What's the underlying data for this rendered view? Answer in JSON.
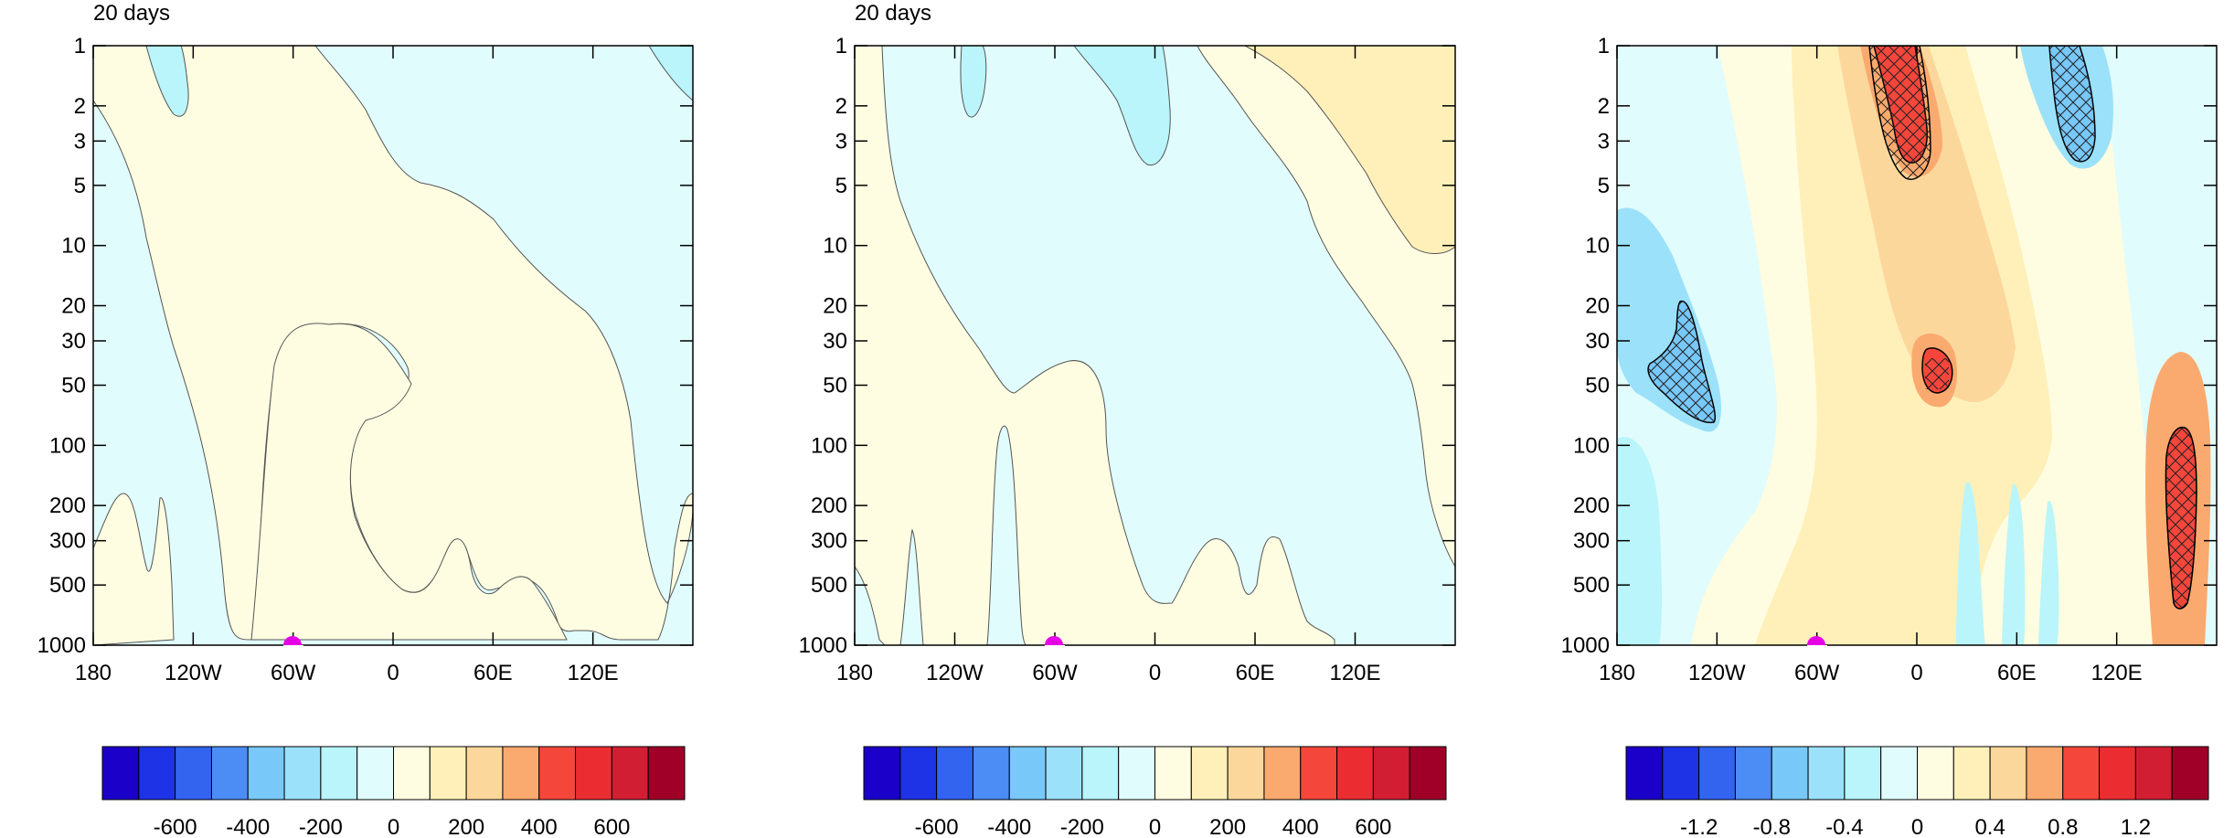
{
  "chart_data": [
    {
      "type": "heatmap",
      "title": "20 days",
      "x_ticks": [
        "180",
        "120W",
        "60W",
        "0",
        "60E",
        "120E"
      ],
      "y_ticks": [
        "1",
        "2",
        "3",
        "5",
        "10",
        "20",
        "30",
        "50",
        "100",
        "200",
        "300",
        "500",
        "1000"
      ],
      "y_scale": "log",
      "y_reversed": true,
      "xlim": [
        -180,
        180
      ],
      "ylim": [
        1,
        1000
      ],
      "marker": {
        "lon": -60,
        "lev": 1000,
        "color": "#e600e6"
      },
      "colorbar": {
        "labels": [
          "-600",
          "-400",
          "-200",
          "0",
          "200",
          "400",
          "600"
        ],
        "colors": [
          "#1a00c8",
          "#1e32e6",
          "#3264f0",
          "#4b8cf5",
          "#78c8fa",
          "#9be1fa",
          "#b9f5fa",
          "#e1fcfc",
          "#fffde1",
          "#fff0b9",
          "#fcd79b",
          "#faaa6e",
          "#f5463c",
          "#eb2d32",
          "#d21e32",
          "#a00028"
        ]
      },
      "levels_shown": [
        {
          "level": "-100 to 0",
          "color": "#e1fcfc",
          "description": "light cyan region"
        },
        {
          "level": "0 to 100",
          "color": "#fffde1",
          "description": "light yellow region"
        },
        {
          "level": "-200 to -100",
          "color": "#b9f5fa",
          "description": "small cyan patches near top"
        }
      ]
    },
    {
      "type": "heatmap",
      "title": "20 days",
      "x_ticks": [
        "180",
        "120W",
        "60W",
        "0",
        "60E",
        "120E"
      ],
      "y_ticks": [
        "1",
        "2",
        "3",
        "5",
        "10",
        "20",
        "30",
        "50",
        "100",
        "200",
        "300",
        "500",
        "1000"
      ],
      "y_scale": "log",
      "y_reversed": true,
      "xlim": [
        -180,
        180
      ],
      "ylim": [
        1,
        1000
      ],
      "marker": {
        "lon": -60,
        "lev": 1000,
        "color": "#e600e6"
      },
      "colorbar": {
        "labels": [
          "-600",
          "-400",
          "-200",
          "0",
          "200",
          "400",
          "600"
        ],
        "colors": [
          "#1a00c8",
          "#1e32e6",
          "#3264f0",
          "#4b8cf5",
          "#78c8fa",
          "#9be1fa",
          "#b9f5fa",
          "#e1fcfc",
          "#fffde1",
          "#fff0b9",
          "#fcd79b",
          "#faaa6e",
          "#f5463c",
          "#eb2d32",
          "#d21e32",
          "#a00028"
        ]
      },
      "levels_shown": [
        {
          "level": "-100 to 0",
          "color": "#e1fcfc"
        },
        {
          "level": "0 to 100",
          "color": "#fffde1"
        },
        {
          "level": "100 to 200",
          "color": "#fff0b9"
        },
        {
          "level": "-200 to -100",
          "color": "#b9f5fa"
        }
      ]
    },
    {
      "type": "heatmap",
      "title": "",
      "x_ticks": [
        "180",
        "120W",
        "60W",
        "0",
        "60E",
        "120E"
      ],
      "y_ticks": [
        "1",
        "2",
        "3",
        "5",
        "10",
        "20",
        "30",
        "50",
        "100",
        "200",
        "300",
        "500",
        "1000"
      ],
      "y_scale": "log",
      "y_reversed": true,
      "xlim": [
        -180,
        180
      ],
      "ylim": [
        1,
        1000
      ],
      "marker": {
        "lon": -60,
        "lev": 1000,
        "color": "#e600e6"
      },
      "hatching": "cross-hatched regions indicate significance",
      "colorbar": {
        "labels": [
          "-1.2",
          "-0.8",
          "-0.4",
          "0",
          "0.4",
          "0.8",
          "1.2"
        ],
        "colors": [
          "#1a00c8",
          "#1e32e6",
          "#3264f0",
          "#4b8cf5",
          "#78c8fa",
          "#9be1fa",
          "#b9f5fa",
          "#e1fcfc",
          "#fffde1",
          "#fff0b9",
          "#fcd79b",
          "#faaa6e",
          "#f5463c",
          "#eb2d32",
          "#d21e32",
          "#a00028"
        ]
      }
    }
  ]
}
